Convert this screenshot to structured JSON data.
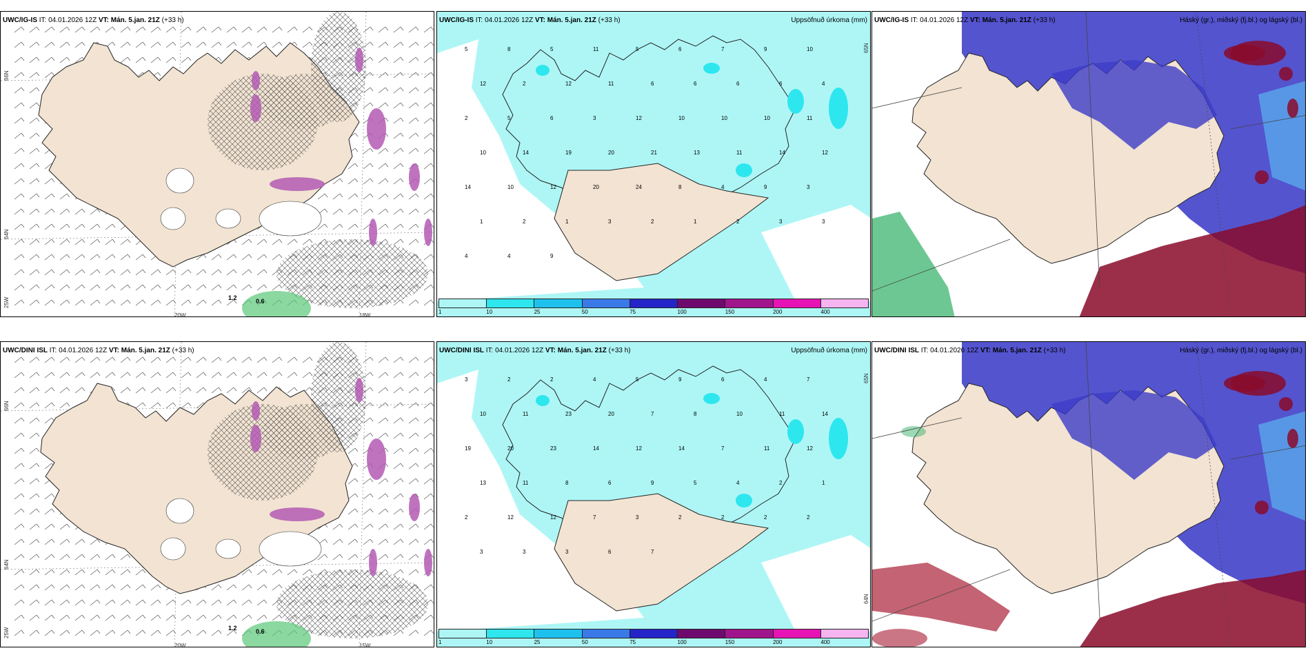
{
  "panels": [
    {
      "id": "top-left",
      "model": "UWC/IG-IS",
      "it_label": "IT:",
      "it_value": "04.01.2026 12Z",
      "vt_label": "VT:",
      "vt_value": "Mán. 5.jan. 21Z",
      "lead": "(+33 h)",
      "right_title": "",
      "type": "wind",
      "lat_labels": [
        "66N",
        "64N",
        "25W"
      ],
      "lon_labels": [
        "20W",
        "18W"
      ],
      "values": [
        "1.2",
        "0.6"
      ]
    },
    {
      "id": "top-middle",
      "model": "UWC/IG-IS",
      "it_label": "IT:",
      "it_value": "04.01.2026 12Z",
      "vt_label": "VT:",
      "vt_value": "Mán. 5.jan. 21Z",
      "lead": "(+33 h)",
      "right_title": "Uppsöfnuð úrkoma (mm)",
      "type": "precip",
      "lat_labels": [
        "65N"
      ],
      "lon_labels": [],
      "values": [
        "5",
        "8",
        "5",
        "11",
        "5",
        "6",
        "7",
        "9",
        "10",
        "12",
        "2",
        "12",
        "11",
        "6",
        "6",
        "6",
        "6",
        "4",
        "2",
        "5",
        "6",
        "3",
        "12",
        "10",
        "10",
        "10",
        "11",
        "10",
        "14",
        "19",
        "20",
        "21",
        "13",
        "11",
        "14",
        "12",
        "14",
        "10",
        "12",
        "20",
        "24",
        "8",
        "4",
        "9",
        "3",
        "1",
        "2",
        "1",
        "3",
        "2",
        "1",
        "2",
        "3",
        "3",
        "4",
        "4",
        "9"
      ]
    },
    {
      "id": "top-right",
      "model": "UWC/IG-IS",
      "it_label": "IT:",
      "it_value": "04.01.2026 12Z",
      "vt_label": "VT:",
      "vt_value": "Mán. 5.jan. 21Z",
      "lead": "(+33 h)",
      "right_title": "Háský (gr.), miðský (fj.bl.) og lágský (bl.)",
      "type": "cloud",
      "lat_labels": [],
      "lon_labels": [],
      "values": []
    },
    {
      "id": "bottom-left",
      "model": "UWC/DINI ISL",
      "it_label": "IT:",
      "it_value": "04.01.2026 12Z",
      "vt_label": "VT:",
      "vt_value": "Mán. 5.jan. 21Z",
      "lead": "(+33 h)",
      "right_title": "",
      "type": "wind",
      "lat_labels": [
        "66N",
        "64N",
        "25W"
      ],
      "lon_labels": [
        "20W",
        "15W"
      ],
      "values": [
        "1.2",
        "0.6"
      ]
    },
    {
      "id": "bottom-middle",
      "model": "UWC/DINI ISL",
      "it_label": "IT:",
      "it_value": "04.01.2026 12Z",
      "vt_label": "VT:",
      "vt_value": "Mán. 5.jan. 21Z",
      "lead": "(+33 h)",
      "right_title": "Uppsöfnuð úrkoma (mm)",
      "type": "precip",
      "lat_labels": [
        "65N",
        "64N"
      ],
      "lon_labels": [],
      "values": [
        "3",
        "2",
        "2",
        "4",
        "5",
        "9",
        "6",
        "4",
        "7",
        "10",
        "11",
        "23",
        "20",
        "7",
        "8",
        "10",
        "11",
        "14",
        "19",
        "20",
        "23",
        "14",
        "12",
        "14",
        "7",
        "11",
        "12",
        "13",
        "11",
        "8",
        "6",
        "9",
        "5",
        "4",
        "2",
        "1",
        "2",
        "12",
        "12",
        "7",
        "3",
        "2",
        "2",
        "2",
        "2",
        "3",
        "3",
        "3",
        "6",
        "7"
      ]
    },
    {
      "id": "bottom-right",
      "model": "UWC/DINI ISL",
      "it_label": "IT:",
      "it_value": "04.01.2026 12Z",
      "vt_label": "VT:",
      "vt_value": "Mán. 5.jan. 21Z",
      "lead": "(+33 h)",
      "right_title": "Háský (gr.), miðský (fj.bl.) og lágský (bl.)",
      "type": "cloud",
      "lat_labels": [],
      "lon_labels": [],
      "values": []
    }
  ],
  "colorbar": {
    "ticks": [
      "1",
      "10",
      "25",
      "50",
      "75",
      "100",
      "150",
      "200",
      "400"
    ],
    "colors": [
      "#aef6f6",
      "#2ee6ee",
      "#1ec1ee",
      "#3a7ae8",
      "#2424c8",
      "#6e0a6e",
      "#a0148c",
      "#e614b4",
      "#f6b4f0"
    ]
  },
  "colors": {
    "land": "#f2e3d2",
    "sea_precip": "#aef6f6",
    "high_cloud": "#3cb46e",
    "mid_cloud": "#8a0a2a",
    "low_cloud": "#3c3cc8"
  }
}
